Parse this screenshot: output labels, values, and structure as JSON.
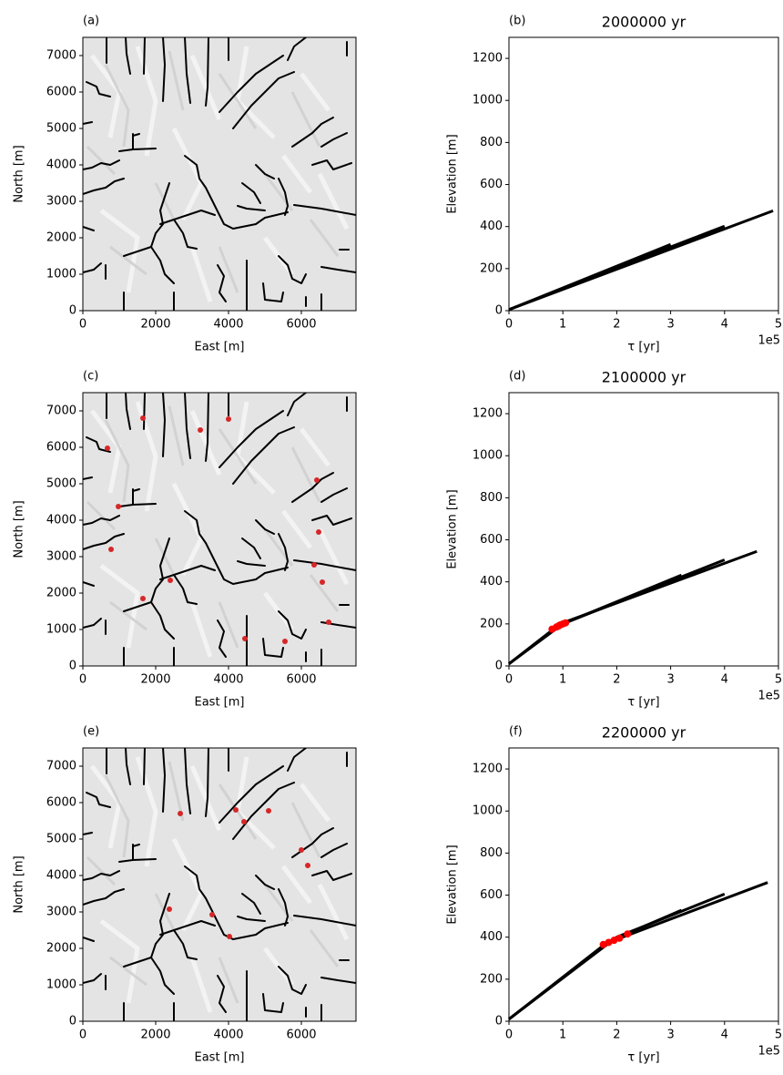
{
  "chart_data": [
    {
      "type": "map",
      "label": "(a)",
      "xlabel": "East [m]",
      "ylabel": "North [m]",
      "xlim": [
        0,
        7500
      ],
      "ylim": [
        0,
        7500
      ],
      "xticks": [
        0,
        2000,
        4000,
        6000
      ],
      "yticks": [
        0,
        1000,
        2000,
        3000,
        4000,
        5000,
        6000,
        7000
      ]
    },
    {
      "type": "line",
      "label": "(b)",
      "title": "2000000 yr",
      "xlabel": "τ [yr]",
      "ylabel": "Elevation [m]",
      "x_offset_label": "1e5",
      "xlim": [
        0,
        500000
      ],
      "ylim": [
        0,
        1300
      ],
      "xticks": [
        {
          "value": 0,
          "label": "0"
        },
        {
          "value": 100000,
          "label": "1"
        },
        {
          "value": 200000,
          "label": "2"
        },
        {
          "value": 300000,
          "label": "3"
        },
        {
          "value": 400000,
          "label": "4"
        },
        {
          "value": 500000,
          "label": "5"
        }
      ],
      "yticks": [
        0,
        200,
        400,
        600,
        800,
        1000,
        1200
      ],
      "series": [
        {
          "color": "#000000",
          "x": [
            0,
            490000
          ],
          "values": [
            5,
            475
          ]
        },
        {
          "color": "#000000",
          "x": [
            0,
            300000
          ],
          "values": [
            5,
            315
          ]
        },
        {
          "color": "#000000",
          "x": [
            0,
            400000
          ],
          "values": [
            5,
            402
          ]
        }
      ]
    },
    {
      "type": "map",
      "label": "(c)",
      "xlabel": "East [m]",
      "ylabel": "North [m]",
      "xlim": [
        0,
        7500
      ],
      "ylim": [
        0,
        7500
      ],
      "xticks": [
        0,
        2000,
        4000,
        6000
      ],
      "yticks": [
        0,
        1000,
        2000,
        3000,
        4000,
        5000,
        6000,
        7000
      ],
      "points": {
        "color": "#d62728",
        "x": [
          1650,
          3225,
          4000,
          675,
          975,
          775,
          6425,
          6475,
          6350,
          6575,
          1650,
          2400,
          4450,
          5550,
          6750
        ],
        "values": [
          6800,
          6475,
          6775,
          5975,
          4375,
          3200,
          5100,
          3675,
          2775,
          2300,
          1850,
          2350,
          750,
          675,
          1200
        ]
      }
    },
    {
      "type": "line",
      "label": "(d)",
      "title": "2100000 yr",
      "xlabel": "τ [yr]",
      "ylabel": "Elevation [m]",
      "x_offset_label": "1e5",
      "xlim": [
        0,
        500000
      ],
      "ylim": [
        0,
        1300
      ],
      "xticks": [
        {
          "value": 0,
          "label": "0"
        },
        {
          "value": 100000,
          "label": "1"
        },
        {
          "value": 200000,
          "label": "2"
        },
        {
          "value": 300000,
          "label": "3"
        },
        {
          "value": 400000,
          "label": "4"
        },
        {
          "value": 500000,
          "label": "5"
        }
      ],
      "yticks": [
        0,
        200,
        400,
        600,
        800,
        1000,
        1200
      ],
      "series": [
        {
          "color": "#000000",
          "x": [
            0,
            100000,
            460000
          ],
          "values": [
            10,
            205,
            545
          ]
        },
        {
          "color": "#000000",
          "x": [
            0,
            90000,
            320000
          ],
          "values": [
            10,
            190,
            432
          ]
        },
        {
          "color": "#000000",
          "x": [
            0,
            100000,
            400000
          ],
          "values": [
            10,
            200,
            505
          ]
        }
      ],
      "points": {
        "color": "#ff0000",
        "x": [
          80000,
          88000,
          95000,
          100000,
          105000,
          92000
        ],
        "values": [
          175,
          185,
          195,
          200,
          205,
          190
        ]
      }
    },
    {
      "type": "map",
      "label": "(e)",
      "xlabel": "East [m]",
      "ylabel": "North [m]",
      "xlim": [
        0,
        7500
      ],
      "ylim": [
        0,
        7500
      ],
      "xticks": [
        0,
        2000,
        4000,
        6000
      ],
      "yticks": [
        0,
        1000,
        2000,
        3000,
        4000,
        5000,
        6000,
        7000
      ],
      "points": {
        "color": "#d62728",
        "x": [
          2675,
          4200,
          4425,
          5100,
          6000,
          6175,
          2375,
          3550,
          4025
        ],
        "values": [
          5700,
          5800,
          5475,
          5775,
          4700,
          4275,
          3075,
          2925,
          2325
        ]
      }
    },
    {
      "type": "line",
      "label": "(f)",
      "title": "2200000 yr",
      "xlabel": "τ [yr]",
      "ylabel": "Elevation [m]",
      "x_offset_label": "1e5",
      "xlim": [
        0,
        500000
      ],
      "ylim": [
        0,
        1300
      ],
      "xticks": [
        {
          "value": 0,
          "label": "0"
        },
        {
          "value": 100000,
          "label": "1"
        },
        {
          "value": 200000,
          "label": "2"
        },
        {
          "value": 300000,
          "label": "3"
        },
        {
          "value": 400000,
          "label": "4"
        },
        {
          "value": 500000,
          "label": "5"
        }
      ],
      "yticks": [
        0,
        200,
        400,
        600,
        800,
        1000,
        1200
      ],
      "series": [
        {
          "color": "#000000",
          "x": [
            0,
            180000,
            480000
          ],
          "values": [
            10,
            370,
            660
          ]
        },
        {
          "color": "#000000",
          "x": [
            0,
            190000,
            320000
          ],
          "values": [
            10,
            385,
            528
          ]
        },
        {
          "color": "#000000",
          "x": [
            0,
            200000,
            400000
          ],
          "values": [
            10,
            400,
            605
          ]
        }
      ],
      "points": {
        "color": "#ff0000",
        "x": [
          175000,
          185000,
          195000,
          205000,
          220000
        ],
        "values": [
          365,
          375,
          385,
          395,
          415
        ]
      }
    }
  ]
}
